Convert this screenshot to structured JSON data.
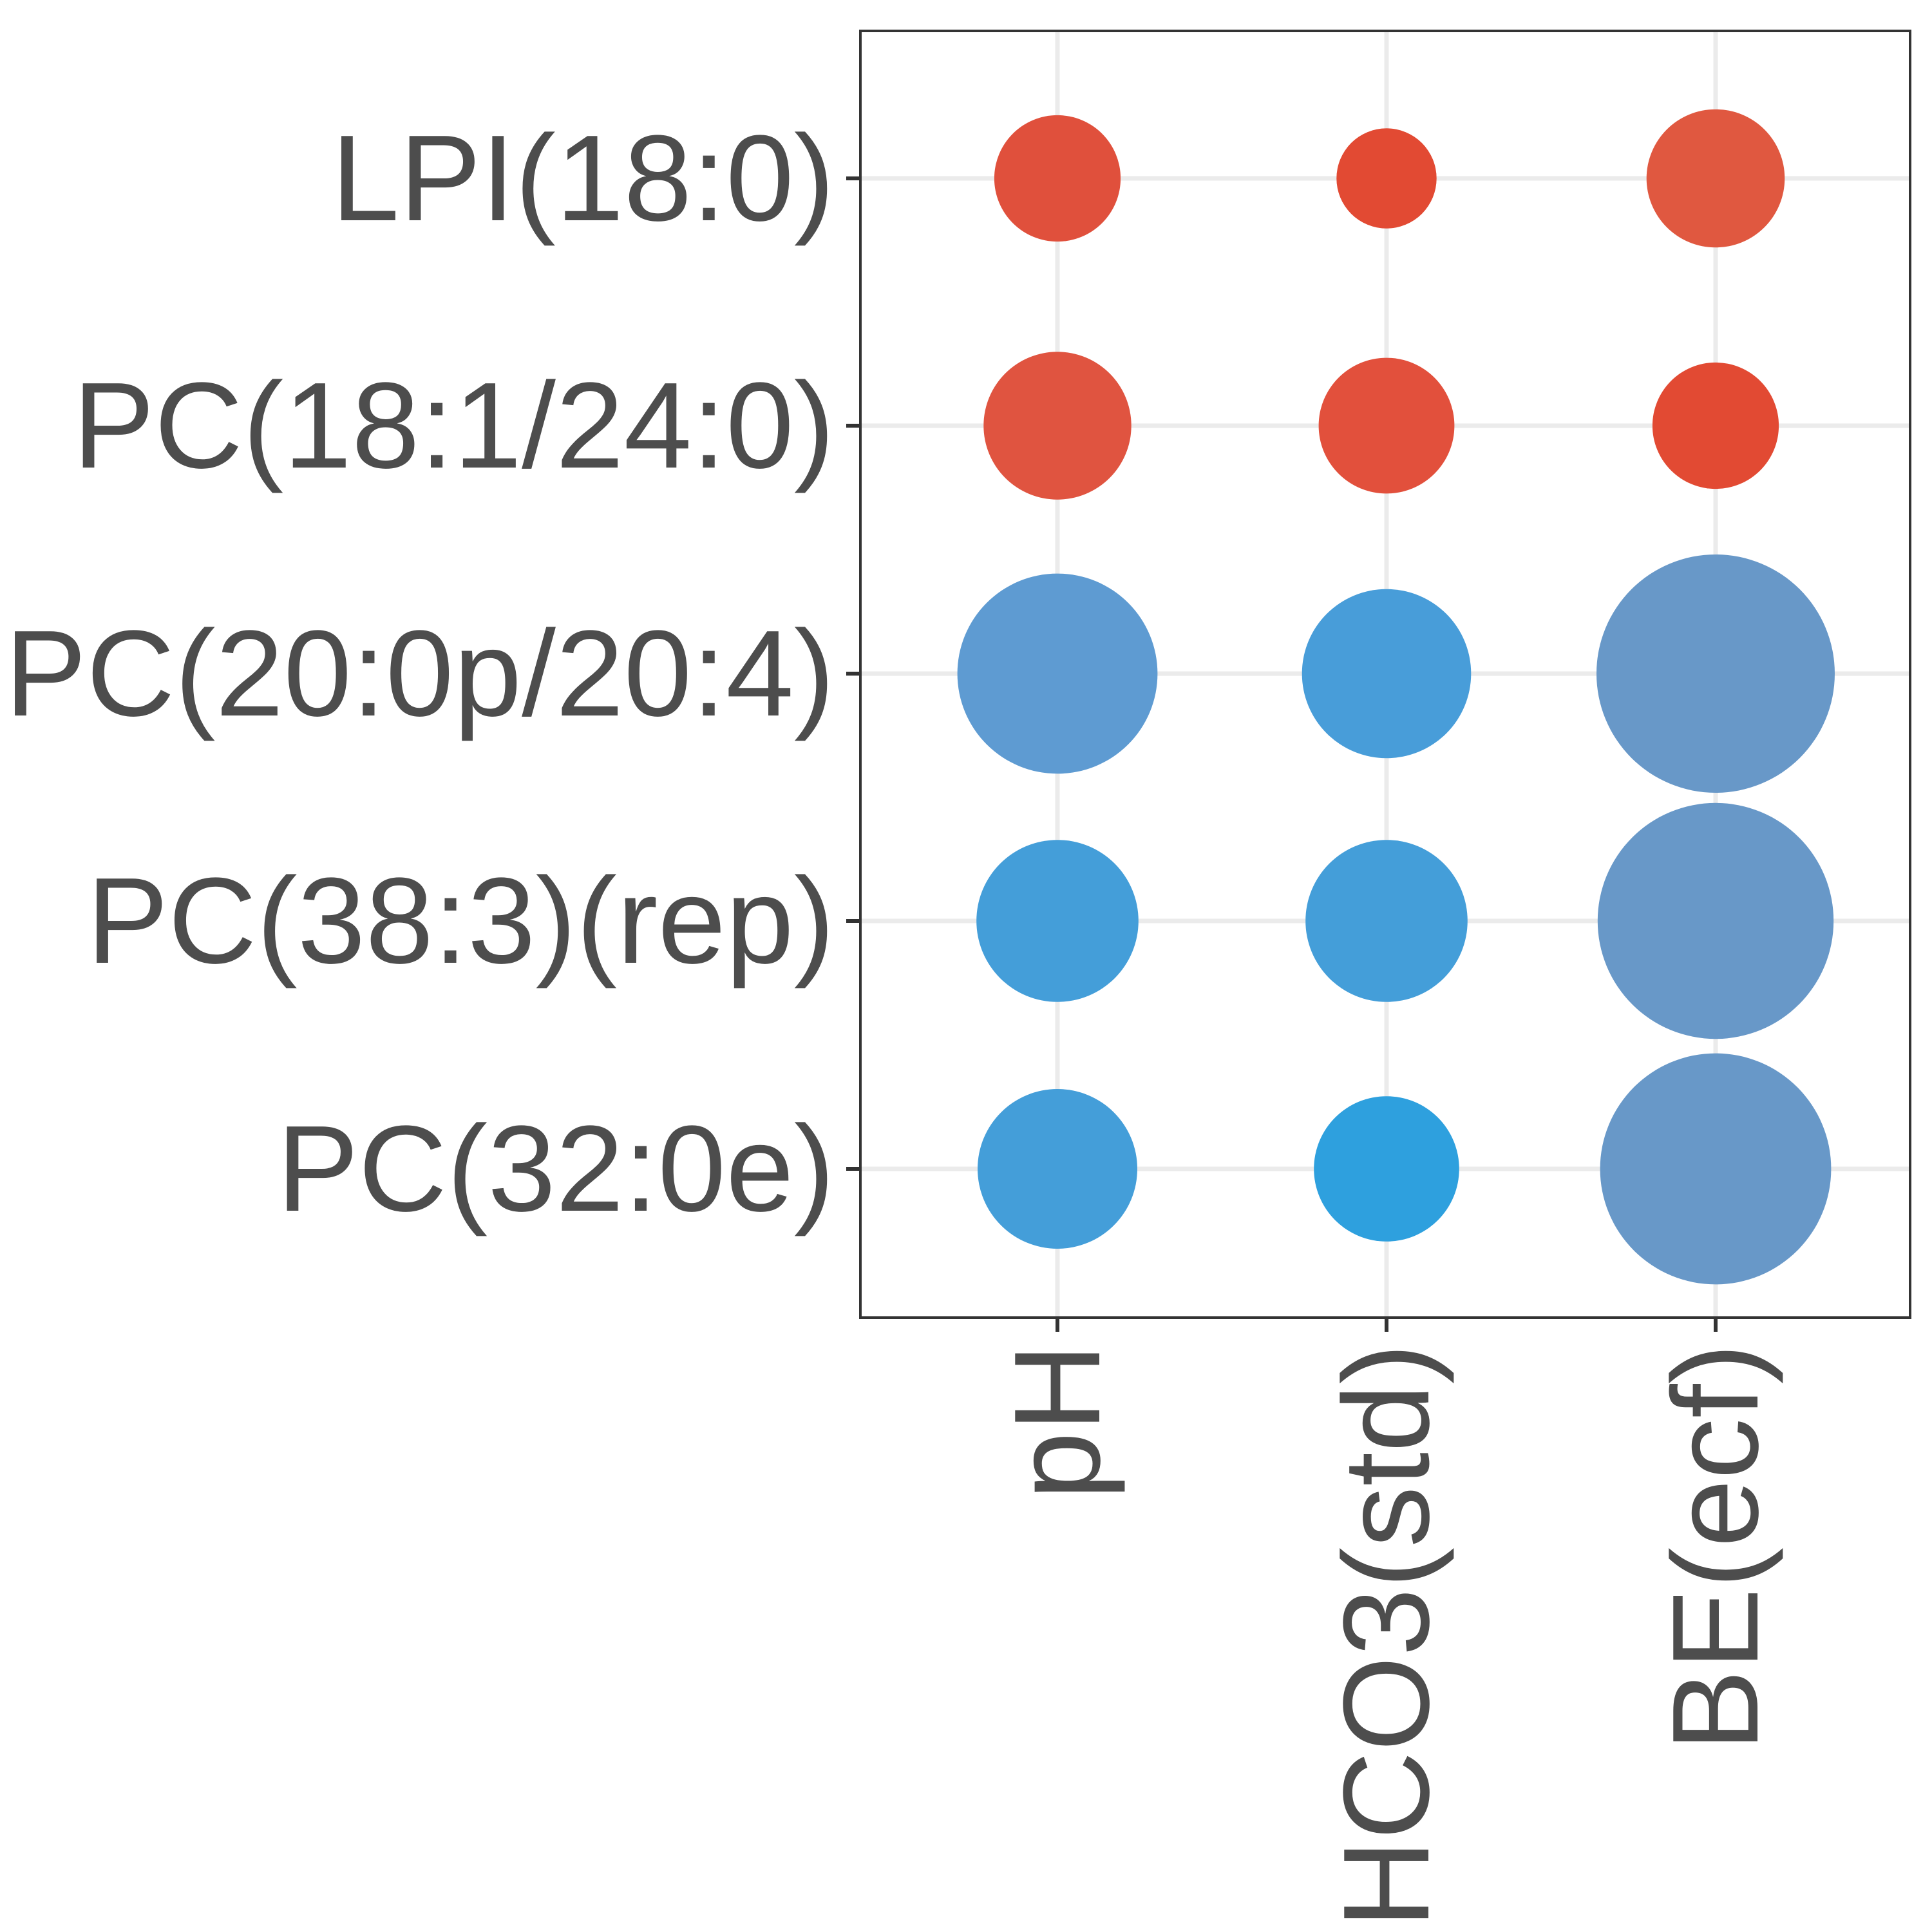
{
  "chart_data": {
    "type": "scatter",
    "subtype": "dot-plot",
    "title": "",
    "xlabel": "",
    "ylabel": "",
    "x_categories": [
      "pH",
      "HCO3(std)",
      "BE(ecf)"
    ],
    "y_categories": [
      "LPI(18:0)",
      "PC(18:1/24:0)",
      "PC(20:0p/20:4)",
      "PC(38:3)(rep)",
      "PC(32:0e)"
    ],
    "grid": true,
    "legend": "none",
    "size_scale": "relative (largest dot = 1.0)",
    "points": [
      {
        "x": "pH",
        "y": "LPI(18:0)",
        "size": 0.53,
        "color": "#e0503c"
      },
      {
        "x": "HCO3(std)",
        "y": "LPI(18:0)",
        "size": 0.42,
        "color": "#e24a33"
      },
      {
        "x": "BE(ecf)",
        "y": "LPI(18:0)",
        "size": 0.58,
        "color": "#e05840"
      },
      {
        "x": "pH",
        "y": "PC(18:1/24:0)",
        "size": 0.62,
        "color": "#e05440"
      },
      {
        "x": "HCO3(std)",
        "y": "PC(18:1/24:0)",
        "size": 0.57,
        "color": "#e2503c"
      },
      {
        "x": "BE(ecf)",
        "y": "PC(18:1/24:0)",
        "size": 0.53,
        "color": "#e24a33"
      },
      {
        "x": "pH",
        "y": "PC(20:0p/20:4)",
        "size": 0.84,
        "color": "#5e9bd2"
      },
      {
        "x": "HCO3(std)",
        "y": "PC(20:0p/20:4)",
        "size": 0.71,
        "color": "#489dd9"
      },
      {
        "x": "BE(ecf)",
        "y": "PC(20:0p/20:4)",
        "size": 1.0,
        "color": "#6898c8"
      },
      {
        "x": "pH",
        "y": "PC(38:3)(rep)",
        "size": 0.68,
        "color": "#449ed9"
      },
      {
        "x": "HCO3(std)",
        "y": "PC(38:3)(rep)",
        "size": 0.68,
        "color": "#449ed9"
      },
      {
        "x": "BE(ecf)",
        "y": "PC(38:3)(rep)",
        "size": 0.99,
        "color": "#6898c8"
      },
      {
        "x": "pH",
        "y": "PC(32:0e)",
        "size": 0.67,
        "color": "#449ed9"
      },
      {
        "x": "HCO3(std)",
        "y": "PC(32:0e)",
        "size": 0.61,
        "color": "#2ea0de"
      },
      {
        "x": "BE(ecf)",
        "y": "PC(32:0e)",
        "size": 0.97,
        "color": "#6898c8"
      }
    ]
  }
}
